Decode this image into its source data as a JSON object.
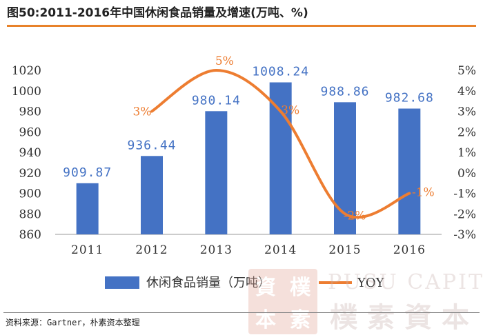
{
  "header": {
    "title": "图50:2011-2016年中国休闲食品销量及增速(万吨、%)"
  },
  "footer": {
    "source": "资料来源：Gartner，朴素资本整理"
  },
  "watermark": {
    "seal_chars": [
      "資",
      "樸",
      "本",
      "素"
    ],
    "english": "PUSU CAPITAL",
    "chinese": "樸素資本"
  },
  "colors": {
    "bar": "#4472C4",
    "line": "#ED7D31",
    "label_blue": "#4472C4",
    "label_orange": "#ED7D31",
    "title_rule": "#E8822A"
  },
  "chart_data": {
    "type": "bar",
    "categories": [
      "2011",
      "2012",
      "2013",
      "2014",
      "2015",
      "2016"
    ],
    "series": [
      {
        "name": "休闲食品销量（万吨）",
        "type": "bar",
        "axis": "left",
        "values": [
          909.87,
          936.44,
          980.14,
          1008.24,
          988.86,
          982.68
        ],
        "labels": [
          "909.87",
          "936.44",
          "980.14",
          "1008.24",
          "988.86",
          "982.68"
        ]
      },
      {
        "name": "YOY",
        "type": "line",
        "axis": "right",
        "values": [
          null,
          3,
          5,
          3,
          -2,
          -1
        ],
        "labels": [
          "",
          "3%",
          "5%",
          "3%",
          "-2%",
          "-1%"
        ]
      }
    ],
    "y_left": {
      "ylim": [
        860,
        1020
      ],
      "ticks": [
        "860",
        "880",
        "900",
        "920",
        "940",
        "960",
        "980",
        "1000",
        "1020"
      ]
    },
    "y_right": {
      "ylim": [
        -3,
        5
      ],
      "ticks": [
        "-3%",
        "-2%",
        "-1%",
        "0%",
        "1%",
        "2%",
        "3%",
        "4%",
        "5%"
      ]
    },
    "legend": {
      "position": "bottom",
      "entries": [
        "休闲食品销量（万吨）",
        "YOY"
      ]
    },
    "grid": false
  }
}
